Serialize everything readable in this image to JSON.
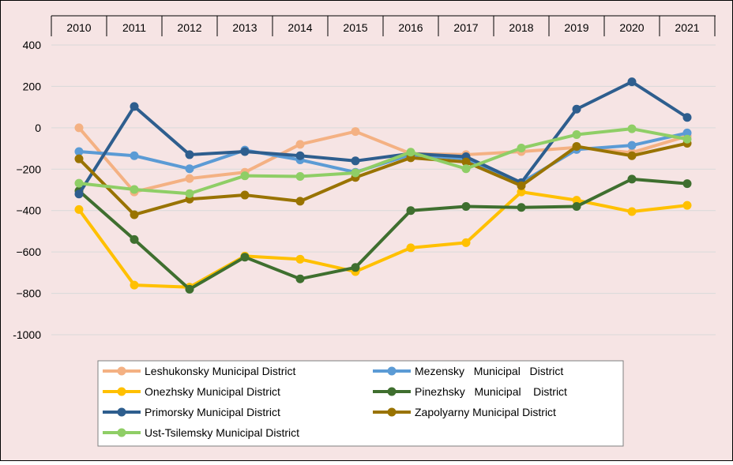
{
  "chart_data": {
    "type": "line",
    "title": "",
    "xlabel": "",
    "ylabel": "",
    "x": [
      "2010",
      "2011",
      "2012",
      "2013",
      "2014",
      "2015",
      "2016",
      "2017",
      "2018",
      "2019",
      "2020",
      "2021"
    ],
    "xaxis_position": "top",
    "ylim": [
      -1000,
      400
    ],
    "yticks": [
      400,
      200,
      0,
      -200,
      -400,
      -600,
      -800,
      -1000
    ],
    "ytick_labels": [
      "400",
      "200",
      "0",
      "−200",
      "−400",
      "−600",
      "−800",
      "-1000"
    ],
    "grid": true,
    "legend_position": "bottom",
    "background_color": "#f6e4e4",
    "series": [
      {
        "name": "Leshukonsky Municipal District",
        "color": "#f4b183",
        "values": [
          0,
          -310,
          -245,
          -215,
          -80,
          -18,
          -125,
          -130,
          -115,
          -95,
          -120,
          -40
        ]
      },
      {
        "name": "Mezensky   Municipal   District",
        "color": "#5b9bd5",
        "values": [
          -115,
          -135,
          -198,
          -108,
          -155,
          -215,
          -130,
          -150,
          -265,
          -105,
          -85,
          -25
        ]
      },
      {
        "name": "Onezhsky Municipal District",
        "color": "#ffc000",
        "values": [
          -395,
          -760,
          -770,
          -620,
          -635,
          -695,
          -580,
          -555,
          -310,
          -350,
          -405,
          -375
        ]
      },
      {
        "name": "Pinezhsky   Municipal    District",
        "color": "#3f6f2f",
        "values": [
          -305,
          -540,
          -780,
          -625,
          -730,
          -675,
          -400,
          -380,
          -385,
          -380,
          -248,
          -270
        ]
      },
      {
        "name": "Primorsky Municipal District",
        "color": "#2e5e8e",
        "values": [
          -320,
          103,
          -130,
          -115,
          -135,
          -160,
          -125,
          -140,
          -265,
          90,
          222,
          50
        ]
      },
      {
        "name": "Zapolyarny Municipal District",
        "color": "#997300",
        "values": [
          -150,
          -420,
          -345,
          -325,
          -355,
          -240,
          -145,
          -165,
          -280,
          -90,
          -135,
          -75
        ]
      },
      {
        "name": "Ust-Tsilemsky Municipal District",
        "color": "#8fce66",
        "values": [
          -268,
          -298,
          -318,
          -232,
          -235,
          -218,
          -118,
          -198,
          -98,
          -33,
          -5,
          -55
        ]
      }
    ]
  }
}
